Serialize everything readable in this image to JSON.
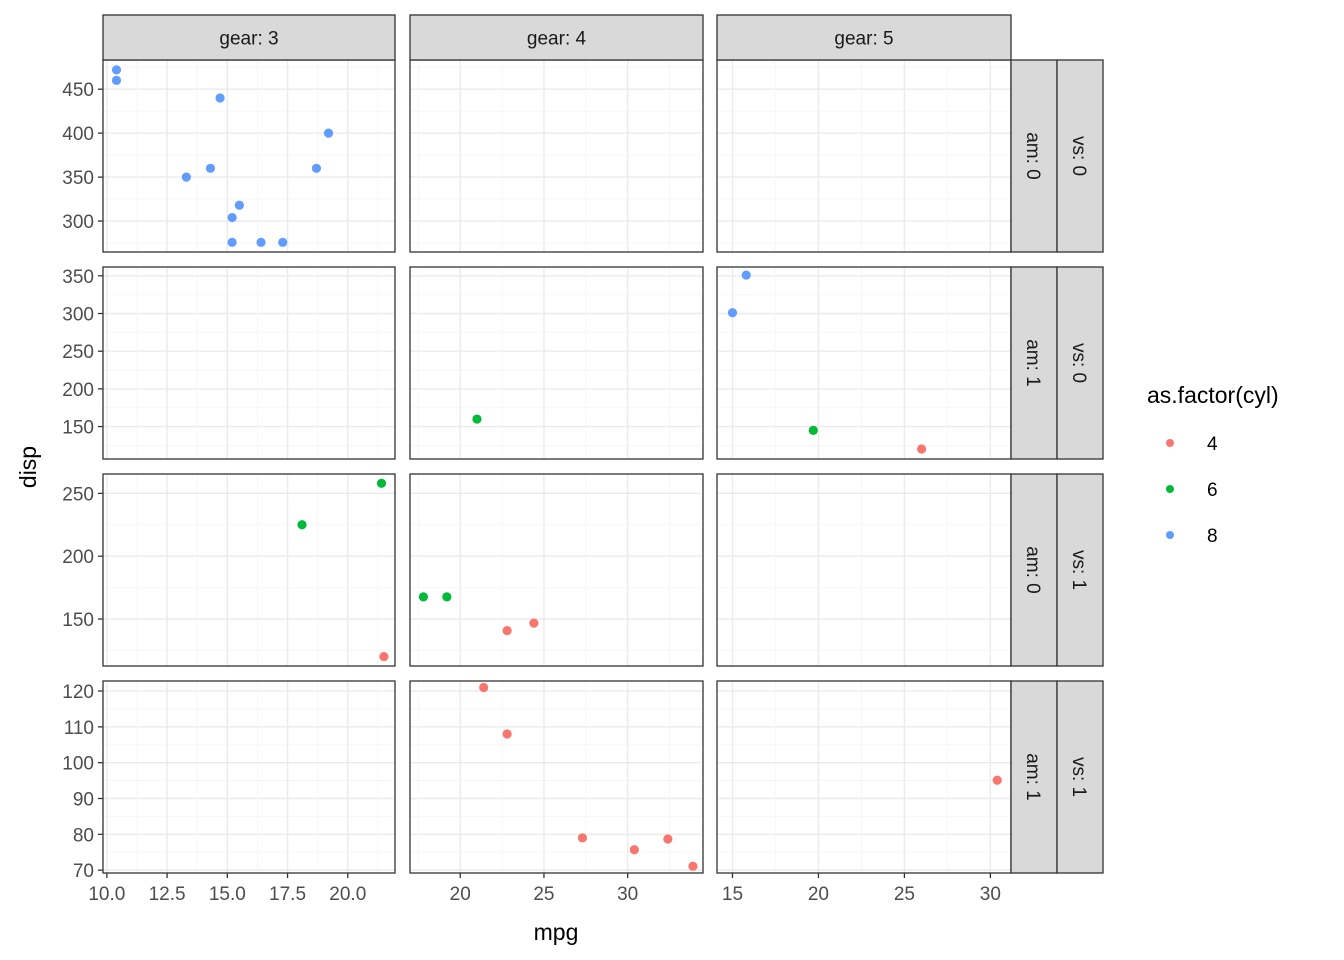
{
  "chart_data": {
    "type": "scatter",
    "xlabel": "mpg",
    "ylabel": "disp",
    "legend": {
      "title": "as.factor(cyl)",
      "position": "right",
      "entries": [
        {
          "label": "4",
          "color": "#F8766D"
        },
        {
          "label": "6",
          "color": "#00BA38"
        },
        {
          "label": "8",
          "color": "#619CFF"
        }
      ]
    },
    "facet_columns": [
      {
        "strip": "gear: 3",
        "xlim": [
          9.84,
          21.96
        ],
        "ticks": [
          "10.0",
          "12.5",
          "15.0",
          "17.5",
          "20.0"
        ]
      },
      {
        "strip": "gear: 4",
        "xlim": [
          17.0,
          34.5
        ],
        "ticks": [
          "20",
          "25",
          "30"
        ]
      },
      {
        "strip": "gear: 5",
        "xlim": [
          14.1,
          31.2
        ],
        "ticks": [
          "15",
          "20",
          "25",
          "30"
        ]
      }
    ],
    "facet_rows": [
      {
        "strip_am": "am: 0",
        "strip_vs": "vs: 0",
        "ylim": [
          264.8,
          483.2
        ],
        "ticks": [
          "300",
          "350",
          "400",
          "450"
        ]
      },
      {
        "strip_am": "am: 1",
        "strip_vs": "vs: 0",
        "ylim": [
          107.0,
          361.7
        ],
        "ticks": [
          "150",
          "200",
          "250",
          "300",
          "350"
        ]
      },
      {
        "strip_am": "am: 0",
        "strip_vs": "vs: 1",
        "ylim": [
          112.6,
          265.4
        ],
        "ticks": [
          "150",
          "200",
          "250"
        ]
      },
      {
        "strip_am": "am: 1",
        "strip_vs": "vs: 1",
        "ylim": [
          69.2,
          122.8
        ],
        "ticks": [
          "70",
          "80",
          "90",
          "100",
          "110",
          "120"
        ]
      }
    ],
    "grid": true,
    "points": [
      {
        "row": 0,
        "col": 0,
        "x": 10.4,
        "y": 472,
        "cyl": "8"
      },
      {
        "row": 0,
        "col": 0,
        "x": 10.4,
        "y": 460,
        "cyl": "8"
      },
      {
        "row": 0,
        "col": 0,
        "x": 14.7,
        "y": 440,
        "cyl": "8"
      },
      {
        "row": 0,
        "col": 0,
        "x": 19.2,
        "y": 400,
        "cyl": "8"
      },
      {
        "row": 0,
        "col": 0,
        "x": 14.3,
        "y": 360,
        "cyl": "8"
      },
      {
        "row": 0,
        "col": 0,
        "x": 18.7,
        "y": 360,
        "cyl": "8"
      },
      {
        "row": 0,
        "col": 0,
        "x": 13.3,
        "y": 350,
        "cyl": "8"
      },
      {
        "row": 0,
        "col": 0,
        "x": 15.5,
        "y": 318,
        "cyl": "8"
      },
      {
        "row": 0,
        "col": 0,
        "x": 15.2,
        "y": 304,
        "cyl": "8"
      },
      {
        "row": 0,
        "col": 0,
        "x": 15.2,
        "y": 275.8,
        "cyl": "8"
      },
      {
        "row": 0,
        "col": 0,
        "x": 16.4,
        "y": 275.8,
        "cyl": "8"
      },
      {
        "row": 0,
        "col": 0,
        "x": 17.3,
        "y": 275.8,
        "cyl": "8"
      },
      {
        "row": 1,
        "col": 1,
        "x": 21.0,
        "y": 160,
        "cyl": "6"
      },
      {
        "row": 1,
        "col": 2,
        "x": 15.8,
        "y": 351,
        "cyl": "8"
      },
      {
        "row": 1,
        "col": 2,
        "x": 15.0,
        "y": 301,
        "cyl": "8"
      },
      {
        "row": 1,
        "col": 2,
        "x": 19.7,
        "y": 145,
        "cyl": "6"
      },
      {
        "row": 1,
        "col": 2,
        "x": 26.0,
        "y": 120.3,
        "cyl": "4"
      },
      {
        "row": 2,
        "col": 0,
        "x": 21.4,
        "y": 258,
        "cyl": "6"
      },
      {
        "row": 2,
        "col": 0,
        "x": 18.1,
        "y": 225,
        "cyl": "6"
      },
      {
        "row": 2,
        "col": 0,
        "x": 21.5,
        "y": 120.1,
        "cyl": "4"
      },
      {
        "row": 2,
        "col": 1,
        "x": 17.8,
        "y": 167.6,
        "cyl": "6"
      },
      {
        "row": 2,
        "col": 1,
        "x": 19.2,
        "y": 167.6,
        "cyl": "6"
      },
      {
        "row": 2,
        "col": 1,
        "x": 22.8,
        "y": 140.8,
        "cyl": "4"
      },
      {
        "row": 2,
        "col": 1,
        "x": 24.4,
        "y": 146.7,
        "cyl": "4"
      },
      {
        "row": 3,
        "col": 1,
        "x": 21.4,
        "y": 121,
        "cyl": "4"
      },
      {
        "row": 3,
        "col": 1,
        "x": 22.8,
        "y": 108,
        "cyl": "4"
      },
      {
        "row": 3,
        "col": 1,
        "x": 27.3,
        "y": 79,
        "cyl": "4"
      },
      {
        "row": 3,
        "col": 1,
        "x": 32.4,
        "y": 78.7,
        "cyl": "4"
      },
      {
        "row": 3,
        "col": 1,
        "x": 30.4,
        "y": 75.7,
        "cyl": "4"
      },
      {
        "row": 3,
        "col": 1,
        "x": 33.9,
        "y": 71.1,
        "cyl": "4"
      },
      {
        "row": 3,
        "col": 2,
        "x": 30.4,
        "y": 95.1,
        "cyl": "4"
      }
    ]
  }
}
